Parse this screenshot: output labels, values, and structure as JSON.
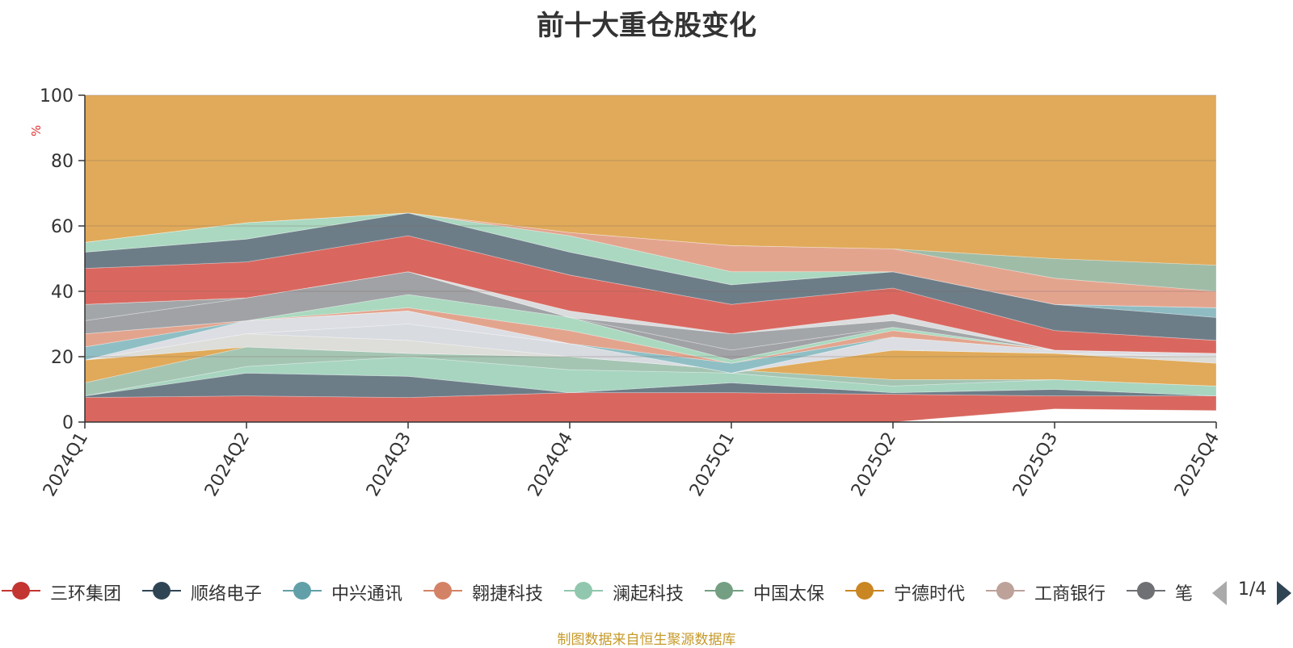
{
  "chart_data": {
    "type": "area",
    "title": "前十大重仓股变化",
    "ylabel": "%",
    "ylim": [
      0,
      100
    ],
    "yticks": [
      0,
      20,
      40,
      60,
      80,
      100
    ],
    "categories": [
      "2024Q1",
      "2024Q2",
      "2024Q3",
      "2024Q4",
      "2025Q1",
      "2025Q2",
      "2025Q3",
      "2025Q4"
    ],
    "stack_boundaries": [
      [
        0,
        0,
        0,
        0,
        0,
        0,
        4,
        3.5
      ],
      [
        7.5,
        8,
        7.5,
        9,
        9,
        8.5,
        8,
        8
      ],
      [
        8,
        15,
        14,
        9,
        12,
        9,
        10,
        8
      ],
      [
        8,
        17,
        20,
        16,
        15,
        11,
        13,
        11
      ],
      [
        12,
        23,
        21,
        20,
        16,
        13,
        13,
        11
      ],
      [
        19,
        23,
        21,
        20,
        16,
        22,
        21,
        18
      ],
      [
        19,
        27,
        25,
        20,
        16,
        22,
        21,
        20
      ],
      [
        19,
        27,
        30,
        24,
        15,
        22,
        21,
        20
      ],
      [
        19,
        31,
        34,
        24,
        15,
        26,
        22,
        21
      ],
      [
        23,
        31,
        34,
        24,
        18,
        26,
        22,
        21
      ],
      [
        27,
        31,
        35,
        28,
        18,
        28,
        22,
        21
      ],
      [
        27,
        31,
        39,
        32,
        19,
        29,
        22,
        21
      ],
      [
        31,
        38,
        46,
        32,
        22,
        29,
        22,
        21
      ],
      [
        36,
        38,
        46,
        32,
        27,
        31,
        22,
        21
      ],
      [
        36,
        38,
        46,
        34,
        27,
        33,
        22,
        21
      ],
      [
        47,
        49,
        57,
        45,
        36,
        41,
        28,
        25
      ],
      [
        52,
        56,
        64,
        52,
        42,
        46,
        36,
        32
      ],
      [
        52,
        56,
        64,
        52,
        42,
        46,
        36,
        35
      ],
      [
        55,
        61,
        64,
        57,
        46,
        46,
        36,
        35
      ],
      [
        55,
        61,
        64,
        58,
        54,
        53,
        44,
        40
      ],
      [
        55,
        61,
        64,
        58,
        54,
        53,
        50,
        48
      ],
      [
        100,
        100,
        100,
        100,
        100,
        100,
        100,
        100
      ]
    ],
    "band_colors": [
      "#d9675f",
      "#6d7d88",
      "#a7d5c0",
      "#a5c5b3",
      "#e0aa5a",
      "#ddddd9",
      "#d8dbe0",
      "#dcdee3",
      "#8fbfc5",
      "#e3a48e",
      "#aad9bf",
      "#a0a2a5",
      "#a3a6a8",
      "#dbdcde",
      "#d9675f",
      "#6d7d88",
      "#8fbcc3",
      "#aad8c0",
      "#e3a48e",
      "#9fbca7",
      "#e0aa5a",
      "#d1beb8"
    ],
    "legend": [
      {
        "label": "三环集团",
        "color": "#c23531"
      },
      {
        "label": "顺络电子",
        "color": "#2f4554"
      },
      {
        "label": "中兴通讯",
        "color": "#61a0a8"
      },
      {
        "label": "翱捷科技",
        "color": "#d48265"
      },
      {
        "label": "澜起科技",
        "color": "#91c7ae"
      },
      {
        "label": "中国太保",
        "color": "#749f83"
      },
      {
        "label": "宁德时代",
        "color": "#ca8622"
      },
      {
        "label": "工商银行",
        "color": "#bda29a"
      },
      {
        "label": "笔",
        "color": "#6e7074"
      }
    ],
    "pager": "1/4"
  },
  "footer": "制图数据来自恒生聚源数据库"
}
